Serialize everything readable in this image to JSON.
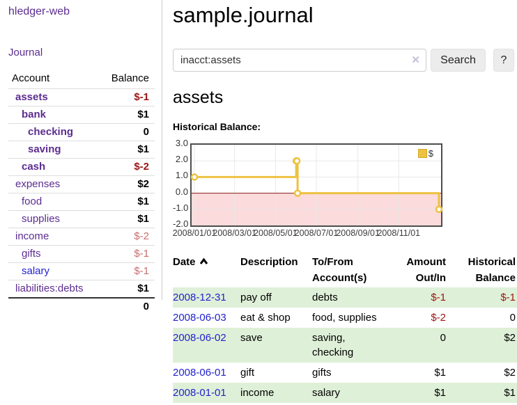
{
  "app": {
    "title": "hledger-web"
  },
  "sidebar": {
    "journal_link": "Journal",
    "accounts": {
      "col_account": "Account",
      "col_balance": "Balance",
      "rows": [
        {
          "name": "assets",
          "indent": 0,
          "bold": true,
          "balance": "$-1",
          "balance_style": "neg-strong",
          "link_color": "purple"
        },
        {
          "name": "bank",
          "indent": 1,
          "bold": true,
          "balance": "$1",
          "balance_style": "pos",
          "link_color": "purple"
        },
        {
          "name": "checking",
          "indent": 2,
          "bold": true,
          "balance": "0",
          "balance_style": "pos",
          "link_color": "purple"
        },
        {
          "name": "saving",
          "indent": 2,
          "bold": true,
          "balance": "$1",
          "balance_style": "pos",
          "link_color": "purple"
        },
        {
          "name": "cash",
          "indent": 1,
          "bold": true,
          "balance": "$-2",
          "balance_style": "neg-strong",
          "link_color": "purple"
        },
        {
          "name": "expenses",
          "indent": 0,
          "bold": false,
          "balance": "$2",
          "balance_style": "pos",
          "link_color": "purple"
        },
        {
          "name": "food",
          "indent": 1,
          "bold": false,
          "balance": "$1",
          "balance_style": "pos",
          "link_color": "purple"
        },
        {
          "name": "supplies",
          "indent": 1,
          "bold": false,
          "balance": "$1",
          "balance_style": "pos",
          "link_color": "purple"
        },
        {
          "name": "income",
          "indent": 0,
          "bold": false,
          "balance": "$-2",
          "balance_style": "neg-soft",
          "link_color": "purple"
        },
        {
          "name": "gifts",
          "indent": 1,
          "bold": false,
          "balance": "$-1",
          "balance_style": "neg-soft",
          "link_color": "purple"
        },
        {
          "name": "salary",
          "indent": 1,
          "bold": false,
          "balance": "$-1",
          "balance_style": "neg-soft",
          "link_color": "blue"
        },
        {
          "name": "liabilities:debts",
          "indent": 0,
          "bold": false,
          "balance": "$1",
          "balance_style": "pos",
          "link_color": "purple"
        }
      ],
      "total": "0"
    }
  },
  "main": {
    "title": "sample.journal",
    "search": {
      "value": "inacct:assets",
      "clear_icon": "✕",
      "search_button": "Search",
      "help_button": "?"
    },
    "account_heading": "assets",
    "section_label": "Historical Balance:"
  },
  "chart_data": {
    "type": "line",
    "step": true,
    "title": "Historical Balance:",
    "x_ticks": [
      "2008/01/01",
      "2008/03/01",
      "2008/05/01",
      "2008/07/01",
      "2008/09/01",
      "2008/11/01"
    ],
    "y_ticks": [
      3.0,
      2.0,
      1.0,
      0.0,
      -1.0,
      -2.0
    ],
    "ylim": [
      -2.0,
      3.0
    ],
    "x_range": [
      "2008-01-01",
      "2008-12-31"
    ],
    "series": [
      {
        "name": "$",
        "color": "#EDC240",
        "points": [
          {
            "date": "2008-01-01",
            "value": 1
          },
          {
            "date": "2008-06-01",
            "value": 2
          },
          {
            "date": "2008-06-02",
            "value": 2
          },
          {
            "date": "2008-06-03",
            "value": 0
          },
          {
            "date": "2008-12-31",
            "value": -1
          }
        ]
      }
    ],
    "legend": {
      "label": "$",
      "swatch_color": "#EDC240",
      "position": "top-right"
    },
    "negative_region_color": "#fbdbdb",
    "zero_line_color": "#8b1a1a",
    "grid_color": "#e8e8e8"
  },
  "register": {
    "columns": [
      {
        "label": "Date",
        "sorted": "asc",
        "align": "left"
      },
      {
        "label": "Description",
        "align": "left"
      },
      {
        "label": "To/From Account(s)",
        "align": "left"
      },
      {
        "label": "Amount Out/In",
        "align": "right"
      },
      {
        "label": "Historical Balance",
        "align": "right"
      }
    ],
    "rows": [
      {
        "date": "2008-12-31",
        "description": "pay off",
        "accounts": "debts",
        "amount": "$-1",
        "amount_neg": true,
        "balance": "$-1",
        "balance_neg": true
      },
      {
        "date": "2008-06-03",
        "description": "eat & shop",
        "accounts": "food, supplies",
        "amount": "$-2",
        "amount_neg": true,
        "balance": "0",
        "balance_neg": false
      },
      {
        "date": "2008-06-02",
        "description": "save",
        "accounts": "saving, checking",
        "amount": "0",
        "amount_neg": false,
        "balance": "$2",
        "balance_neg": false
      },
      {
        "date": "2008-06-01",
        "description": "gift",
        "accounts": "gifts",
        "amount": "$1",
        "amount_neg": false,
        "balance": "$2",
        "balance_neg": false
      },
      {
        "date": "2008-01-01",
        "description": "income",
        "accounts": "salary",
        "amount": "$1",
        "amount_neg": false,
        "balance": "$1",
        "balance_neg": false
      }
    ]
  }
}
